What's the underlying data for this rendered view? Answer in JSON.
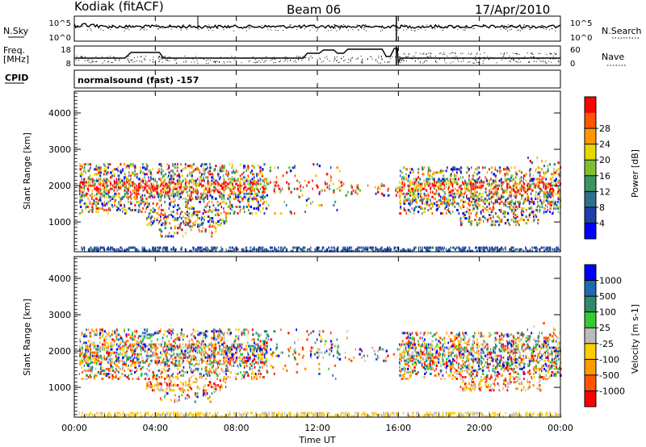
{
  "header": {
    "station": "Kodiak (fitACF)",
    "beam": "Beam 06",
    "date": "17/Apr/2010"
  },
  "top_panels": {
    "nsky_label": "N.Sky",
    "nsky_ticks": [
      "10^5",
      "10^0"
    ],
    "nsearch_label": "N.Search",
    "nsearch_ticks": [
      "10^5",
      "10^0"
    ],
    "freq_label": "Freq.",
    "freq_unit": "[MHz]",
    "freq_ticks": [
      "18",
      "8"
    ],
    "nave_label": "Nave",
    "nave_ticks": [
      "60",
      "0"
    ],
    "cpid_label": "CPID",
    "cpid_text": "normalsound (fast) -157"
  },
  "colors": {
    "power_scale": [
      "#0000ff",
      "#1e3ea8",
      "#2e6f8e",
      "#3a9560",
      "#7fc030",
      "#e6d800",
      "#ff9900",
      "#ff5500",
      "#ff0000"
    ],
    "velocity_scale": [
      "#ff0000",
      "#ff5500",
      "#ff9900",
      "#ffcc00",
      "#bbbbbb",
      "#33cc33",
      "#2e8a6a",
      "#1e6ab0",
      "#0000ff"
    ]
  },
  "chart_data": [
    {
      "type": "heatmap",
      "name": "power",
      "xlabel": "",
      "ylabel": "Slant Range [km]",
      "yticks": [
        "1000",
        "2000",
        "3000",
        "4000"
      ],
      "xlim_hours": [
        0,
        24
      ],
      "ylim_km": [
        180,
        4600
      ],
      "colorbar_label": "Power [dB]",
      "colorbar_ticks": [
        "4",
        "8",
        "12",
        "16",
        "20",
        "24",
        "28"
      ],
      "colorbar_range": [
        0,
        32
      ]
    },
    {
      "type": "heatmap",
      "name": "velocity",
      "xlabel": "Time UT",
      "ylabel": "Slant Range [km]",
      "yticks": [
        "1000",
        "2000",
        "3000",
        "4000"
      ],
      "xticks": [
        "00:00",
        "04:00",
        "08:00",
        "12:00",
        "16:00",
        "20:00",
        "00:00"
      ],
      "xlim_hours": [
        0,
        24
      ],
      "ylim_km": [
        180,
        4600
      ],
      "colorbar_label": "Velocity [m s-1]",
      "colorbar_ticks": [
        "-1000",
        "-500",
        "-100",
        "-25",
        "25",
        "100",
        "500",
        "1000"
      ]
    }
  ]
}
